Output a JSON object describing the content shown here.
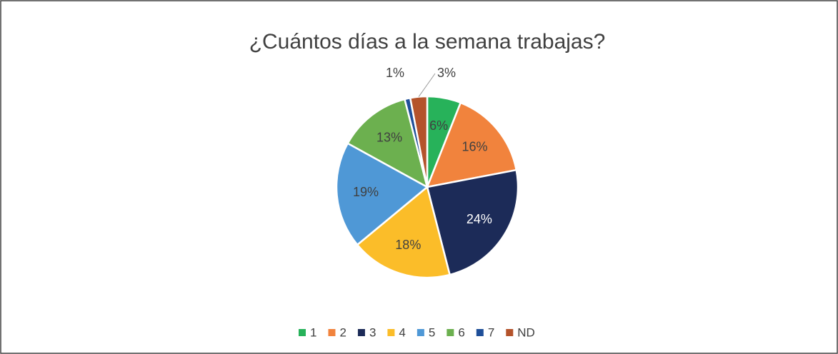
{
  "chart_data": {
    "type": "pie",
    "title": "¿Cuántos días a la semana trabajas?",
    "categories": [
      "1",
      "2",
      "3",
      "4",
      "5",
      "6",
      "7",
      "ND"
    ],
    "values": [
      6,
      16,
      24,
      18,
      19,
      13,
      1,
      3
    ],
    "value_labels": [
      "6%",
      "16%",
      "24%",
      "18%",
      "19%",
      "13%",
      "1%",
      "3%"
    ],
    "colors": [
      "#27b25a",
      "#f1833d",
      "#1c2b58",
      "#fbbd29",
      "#4f98d6",
      "#6cb04f",
      "#1f4f99",
      "#b4532b"
    ],
    "legend": "bottom"
  }
}
